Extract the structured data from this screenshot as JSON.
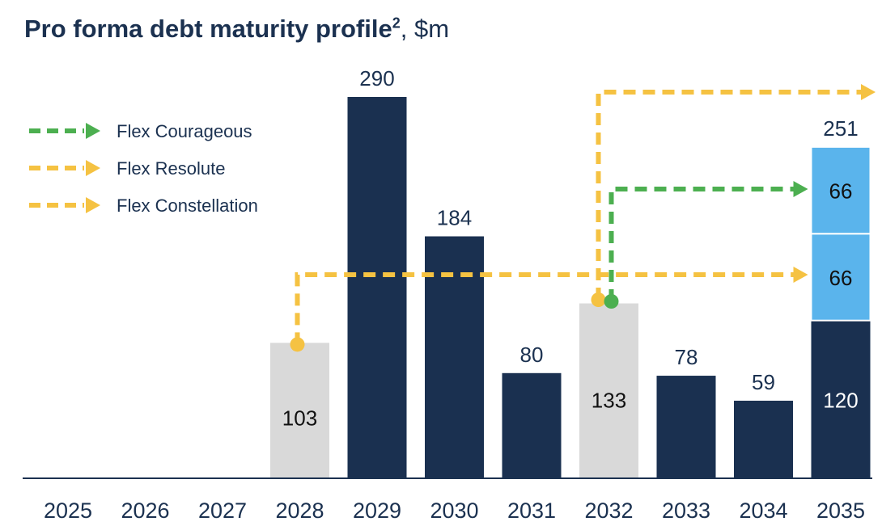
{
  "chart_data": {
    "type": "bar",
    "title": "Pro forma debt maturity profile",
    "title_superscript": "2",
    "title_unit": ", $m",
    "categories": [
      "2025",
      "2026",
      "2027",
      "2028",
      "2029",
      "2030",
      "2031",
      "2032",
      "2033",
      "2034",
      "2035"
    ],
    "series": [
      {
        "values": [
          0,
          0,
          0,
          103,
          290,
          184,
          80,
          133,
          78,
          59,
          120
        ]
      },
      {
        "values": [
          0,
          0,
          0,
          0,
          0,
          0,
          0,
          0,
          0,
          0,
          66
        ]
      },
      {
        "values": [
          0,
          0,
          0,
          0,
          0,
          0,
          0,
          0,
          0,
          0,
          66
        ]
      }
    ],
    "bar_colors": [
      "#1a3050",
      "#1a3050",
      "#1a3050",
      "#d9d9d9",
      "#1a3050",
      "#1a3050",
      "#1a3050",
      "#d9d9d9",
      "#1a3050",
      "#1a3050",
      "#1a3050"
    ],
    "stack_color": "#5ab4ec",
    "total_labels": [
      {
        "category": "2029",
        "label": "290"
      },
      {
        "category": "2030",
        "label": "184"
      },
      {
        "category": "2031",
        "label": "80"
      },
      {
        "category": "2033",
        "label": "78"
      },
      {
        "category": "2034",
        "label": "59"
      },
      {
        "category": "2035",
        "label": "251"
      }
    ],
    "inside_labels": [
      {
        "category": "2028",
        "label": "103"
      },
      {
        "category": "2032",
        "label": "133"
      },
      {
        "category": "2035",
        "label": "120"
      },
      {
        "category": "2035",
        "label": "66"
      },
      {
        "category": "2035",
        "label": "66"
      }
    ],
    "ylim": [
      0,
      290
    ],
    "grid": false,
    "legend": {
      "placement": "top-left",
      "items": [
        {
          "label": "Flex Courageous",
          "color": "#4caf50"
        },
        {
          "label": "Flex Resolute",
          "color": "#f5c242"
        },
        {
          "label": "Flex Constellation",
          "color": "#f5c242"
        }
      ]
    },
    "arrows": [
      {
        "name": "flex-courageous",
        "from": "2032",
        "to": "2035",
        "to_segment": "top",
        "color": "#4caf50"
      },
      {
        "name": "flex-resolute",
        "from": "2028",
        "to": "2035",
        "to_segment": "middle",
        "color": "#f5c242"
      },
      {
        "name": "flex-constellation",
        "from": "2032",
        "to": "beyond 2035",
        "color": "#f5c242"
      }
    ]
  }
}
